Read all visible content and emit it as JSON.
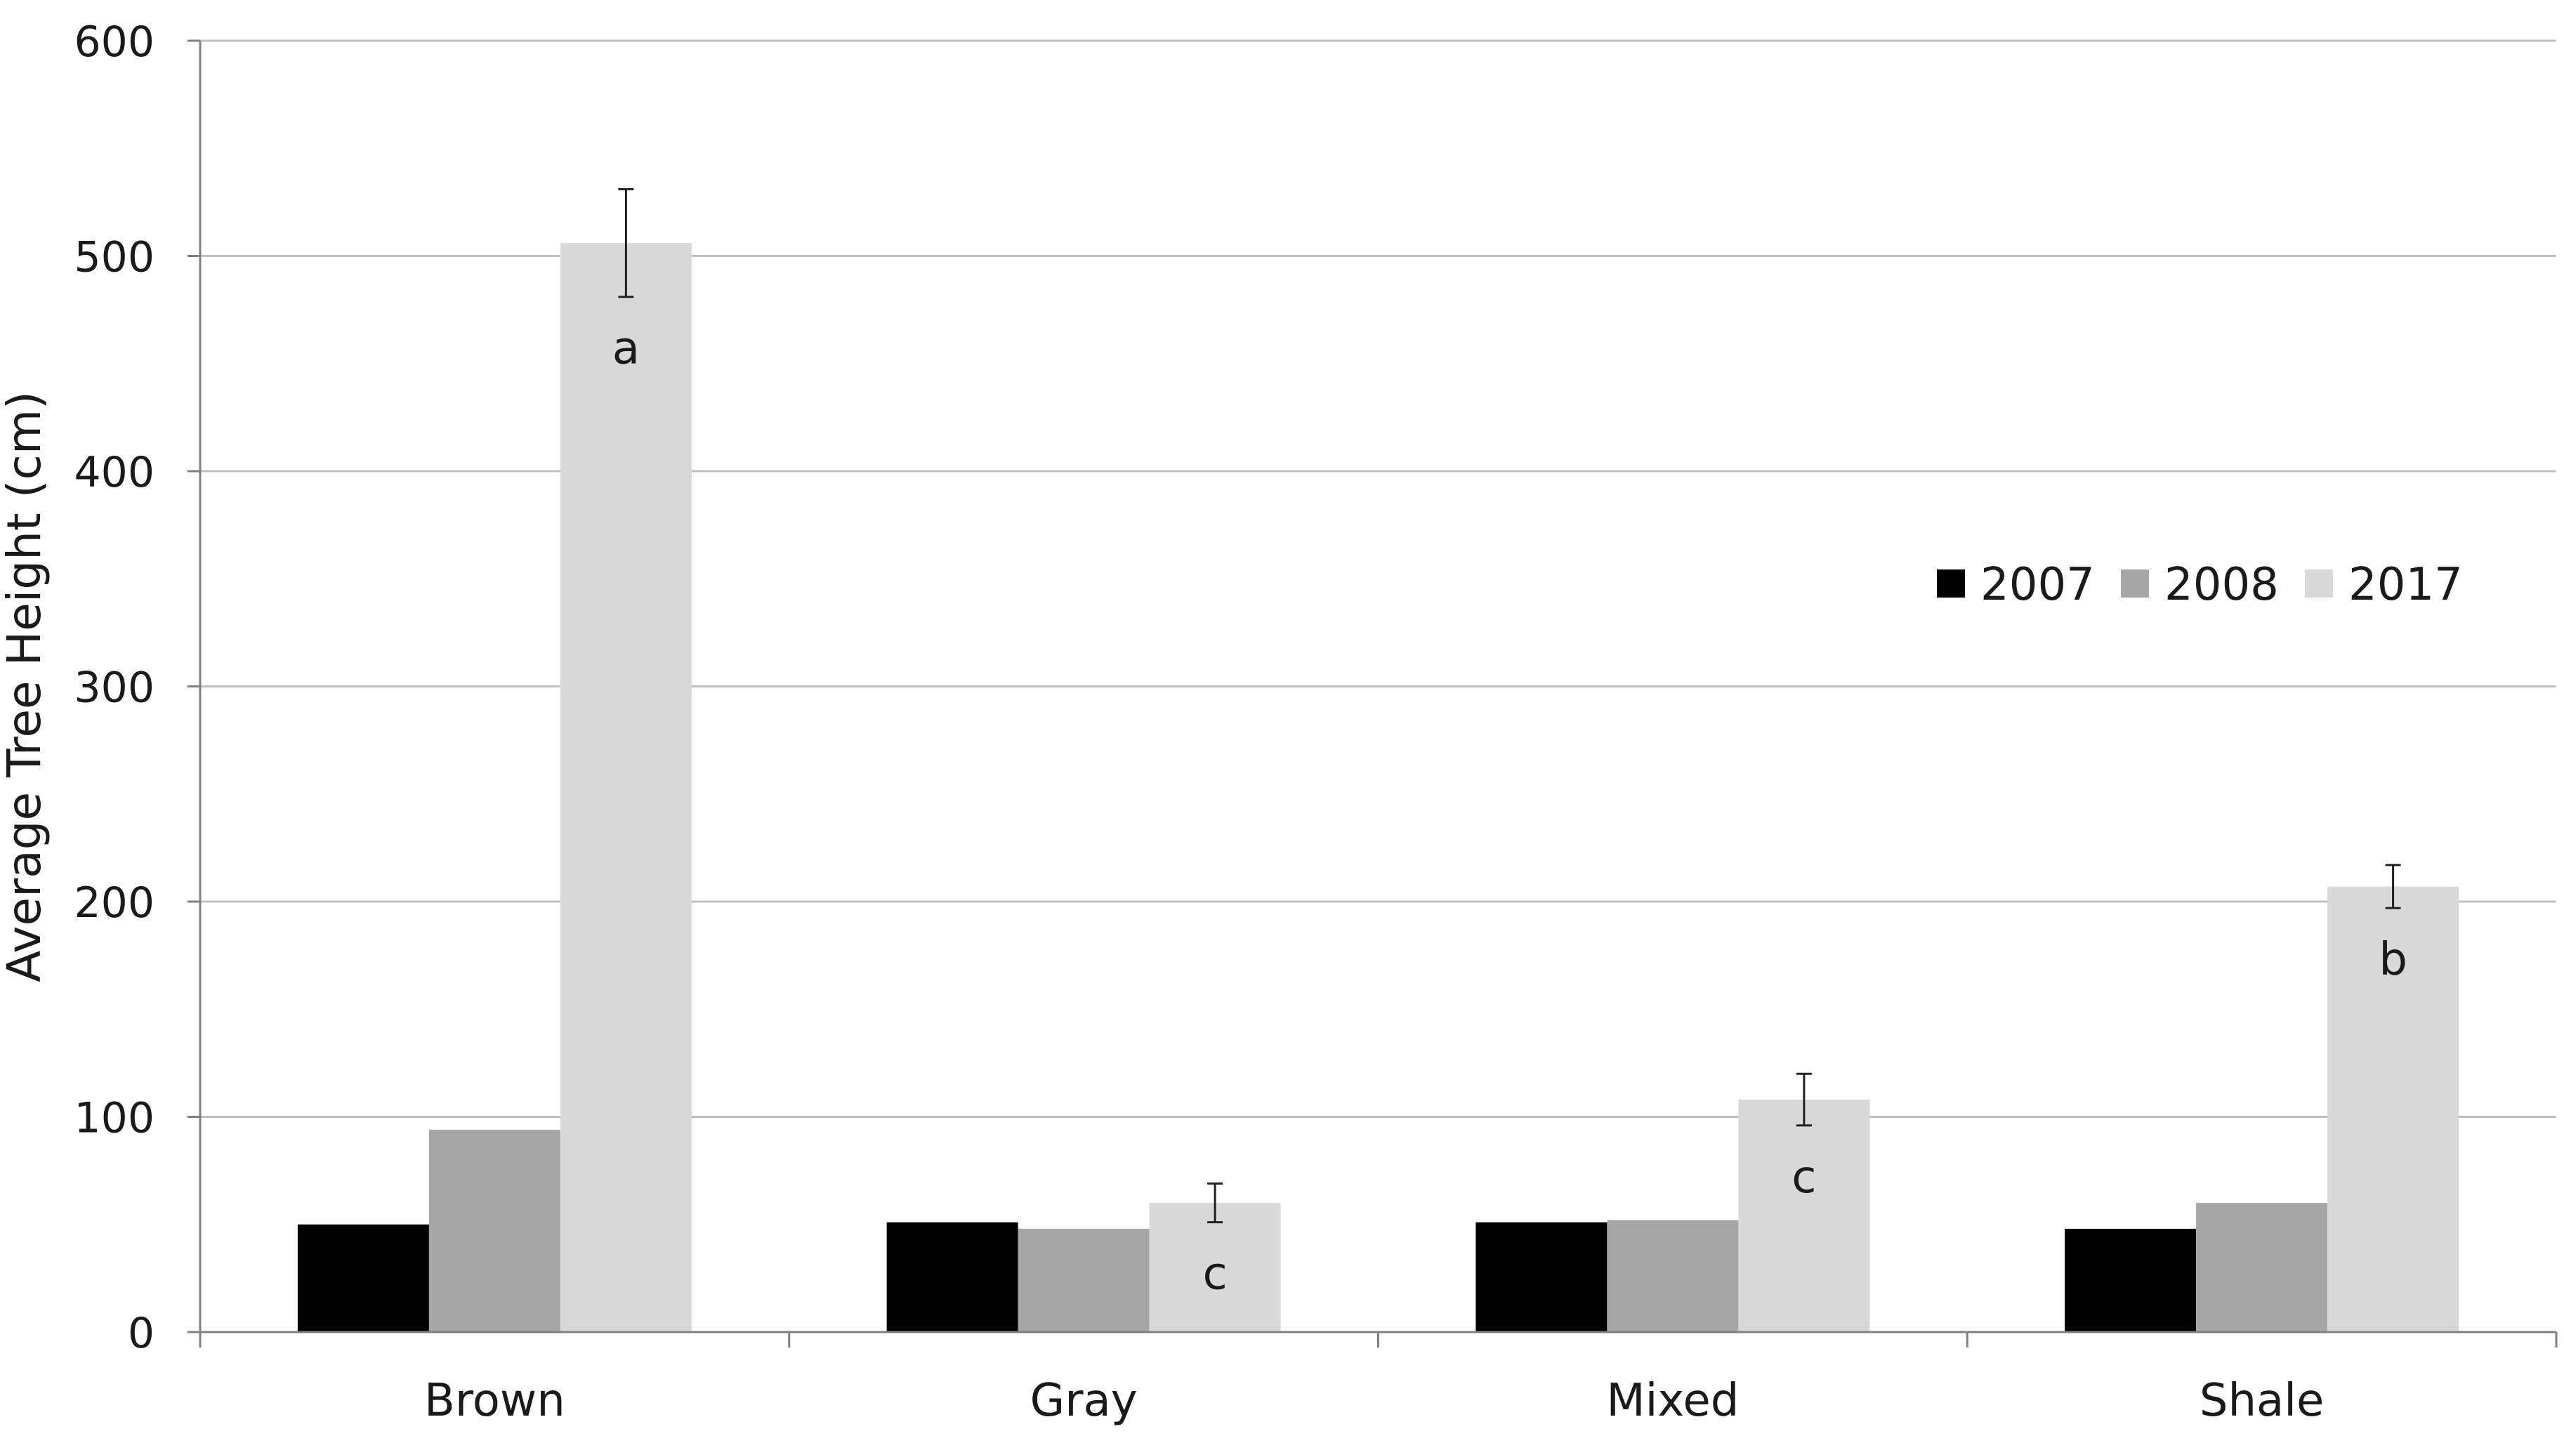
{
  "chart_data": {
    "type": "bar",
    "title": "",
    "xlabel": "",
    "ylabel": "Average Tree Height (cm)",
    "ylim": [
      0,
      600
    ],
    "yticks": [
      0,
      100,
      200,
      300,
      400,
      500,
      600
    ],
    "grid": true,
    "legend_position": "right-middle",
    "categories": [
      "Brown",
      "Gray",
      "Mixed",
      "Shale"
    ],
    "series": [
      {
        "name": "2007",
        "color": "#000000",
        "values": [
          50,
          51,
          51,
          48
        ]
      },
      {
        "name": "2008",
        "color": "#a6a6a6",
        "values": [
          94,
          48,
          52,
          60
        ]
      },
      {
        "name": "2017",
        "color": "#d9d9d9",
        "values": [
          506,
          60,
          108,
          207
        ],
        "error": [
          25,
          9,
          12,
          10
        ],
        "annotations": [
          "a",
          "c",
          "c",
          "b"
        ]
      }
    ]
  }
}
